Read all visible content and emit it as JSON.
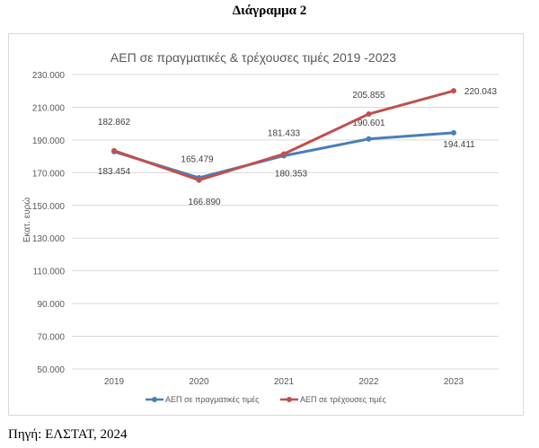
{
  "heading": "Διάγραμμα 2",
  "source": "Πηγή: ΕΛΣΤΑΤ, 2024",
  "chart_data": {
    "type": "line",
    "title": "ΑΕΠ σε πραγματικές & τρέχουσες τιμές 2019 -2023",
    "xlabel": "",
    "ylabel": "Εκατ. ευρώ",
    "categories": [
      "2019",
      "2020",
      "2021",
      "2022",
      "2023"
    ],
    "ylim": [
      50000,
      230000
    ],
    "yticks": [
      50000,
      70000,
      90000,
      110000,
      130000,
      150000,
      170000,
      190000,
      210000,
      230000
    ],
    "ytick_labels": [
      "50.000",
      "70.000",
      "90.000",
      "110.000",
      "130.000",
      "150.000",
      "170.000",
      "190.000",
      "210.000",
      "230.000"
    ],
    "grid": true,
    "legend": "bottom",
    "series": [
      {
        "name": "ΑΕΠ σε πραγματικές τιμές",
        "color": "#4a7ebb",
        "values": [
          182862,
          166890,
          180353,
          190601,
          194411
        ],
        "labels": [
          "182.862",
          "166.890",
          "180.353",
          "190.601",
          "194.411"
        ]
      },
      {
        "name": "ΑΕΠ σε τρέχουσες τιμές",
        "color": "#c0504d",
        "values": [
          183454,
          165479,
          181433,
          205855,
          220043
        ],
        "labels": [
          "183.454",
          "165.479",
          "181.433",
          "205.855",
          "220.043"
        ]
      }
    ]
  }
}
